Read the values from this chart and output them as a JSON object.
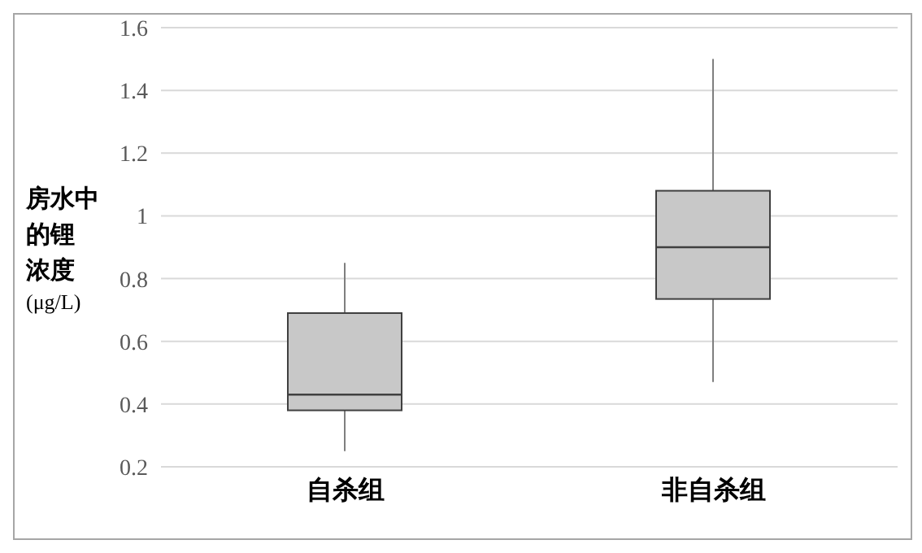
{
  "chart_data": {
    "type": "box",
    "ylabel": "房水中的锂浓度(μg/L)",
    "categories": [
      "自杀组",
      "非自杀组"
    ],
    "series": [
      {
        "color": "#c8c8c8",
        "boxes": [
          {
            "low": 0.25,
            "q1": 0.38,
            "median": 0.43,
            "q3": 0.69,
            "high": 0.85
          },
          {
            "low": 0.47,
            "q1": 0.735,
            "median": 0.9,
            "q3": 1.08,
            "high": 1.5
          }
        ]
      }
    ],
    "ylim": [
      0.2,
      1.6
    ],
    "yticks": [
      0.2,
      0.4,
      0.6,
      0.8,
      1,
      1.2,
      1.4,
      1.6
    ],
    "grid": "y"
  }
}
